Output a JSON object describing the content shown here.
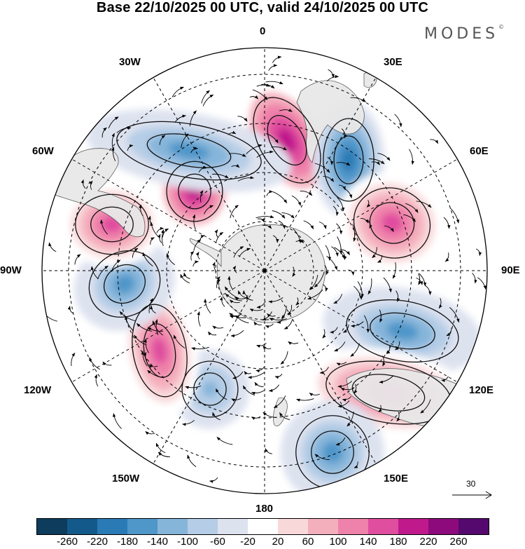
{
  "title": "Base 22/10/2025 00 UTC, valid 24/10/2025 00 UTC",
  "brand": "MODES",
  "brand_mark": "©",
  "longitude_labels": {
    "lon0": "0",
    "lon30e": "30E",
    "lon60e": "60E",
    "lon90e": "90E",
    "lon120e": "120E",
    "lon150e": "150E",
    "lon180": "180",
    "lon150w": "150W",
    "lon120w": "120W",
    "lon90w": "90W",
    "lon60w": "60W",
    "lon30w": "30W"
  },
  "vector_scale": {
    "label": "30"
  },
  "colorbar": {
    "colors": [
      "#0d3c5c",
      "#135a8a",
      "#2a7ab5",
      "#4f96c9",
      "#86b5da",
      "#b5cde6",
      "#dde2ef",
      "#ffffff",
      "#f9d8da",
      "#f4afbd",
      "#ef82aa",
      "#e04e9f",
      "#c0198c",
      "#8c0a7c",
      "#55096e"
    ],
    "tick_labels": [
      "-260",
      "-220",
      "-180",
      "-140",
      "-100",
      "-60",
      "-20",
      "20",
      "60",
      "100",
      "140",
      "180",
      "220",
      "260"
    ]
  },
  "anomalies": [
    {
      "name": "anomaly-positive-0e",
      "value": 200
    },
    {
      "name": "anomaly-negative-30e",
      "value": -180
    },
    {
      "name": "anomaly-positive-60e",
      "value": 150
    },
    {
      "name": "anomaly-negative-110e",
      "value": -170
    },
    {
      "name": "anomaly-positive-125e",
      "value": 160
    },
    {
      "name": "anomaly-negative-160e",
      "value": -140
    },
    {
      "name": "anomaly-negative-150w",
      "value": -110
    },
    {
      "name": "anomaly-positive-120w",
      "value": 170
    },
    {
      "name": "anomaly-negative-95w",
      "value": -170
    },
    {
      "name": "anomaly-positive-75w",
      "value": 160
    },
    {
      "name": "anomaly-positive-35w",
      "value": 200
    },
    {
      "name": "anomaly-negative-45w",
      "value": -170
    }
  ]
}
